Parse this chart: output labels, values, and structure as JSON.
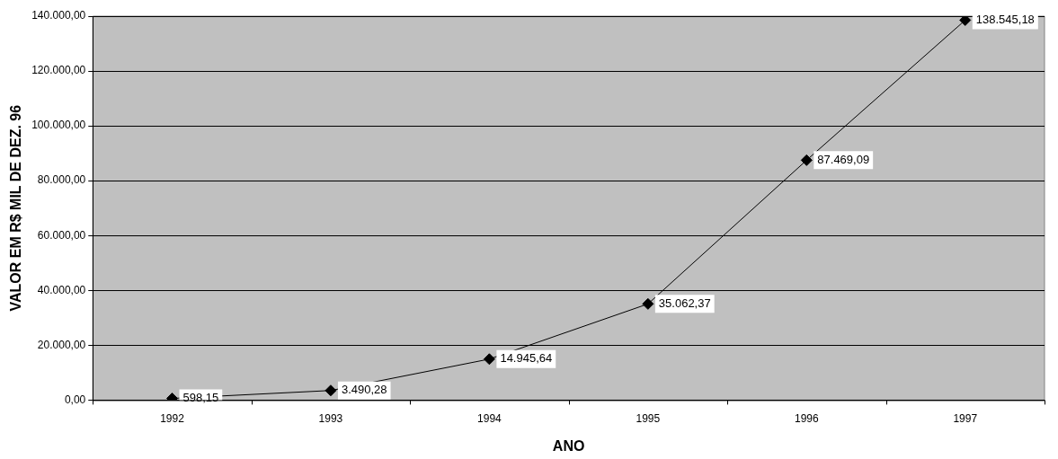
{
  "chart_data": {
    "type": "line",
    "xlabel": "ANO",
    "ylabel": "VALOR EM R$ MIL DE DEZ. 96",
    "categories": [
      "1992",
      "1993",
      "1994",
      "1995",
      "1996",
      "1997"
    ],
    "series": [
      {
        "color": "#000000",
        "values": [
          598.15,
          3490.28,
          14945.64,
          35062.37,
          87469.09,
          138545.18
        ],
        "value_labels": [
          "598,15",
          "3.490,28",
          "14.945,64",
          "35.062,37",
          "87.469,09",
          "138.545,18"
        ]
      }
    ],
    "ylim": [
      0,
      140000
    ],
    "yticks": [
      {
        "value": 0,
        "label": "0,00"
      },
      {
        "value": 20000,
        "label": "20.000,00"
      },
      {
        "value": 40000,
        "label": "40.000,00"
      },
      {
        "value": 60000,
        "label": "60.000,00"
      },
      {
        "value": 80000,
        "label": "80.000,00"
      },
      {
        "value": 100000,
        "label": "100.000,00"
      },
      {
        "value": 120000,
        "label": "120.000,00"
      },
      {
        "value": 140000,
        "label": "140.000,00"
      }
    ],
    "grid": "y",
    "legend": false,
    "marker": "diamond",
    "line_style": "solid"
  }
}
